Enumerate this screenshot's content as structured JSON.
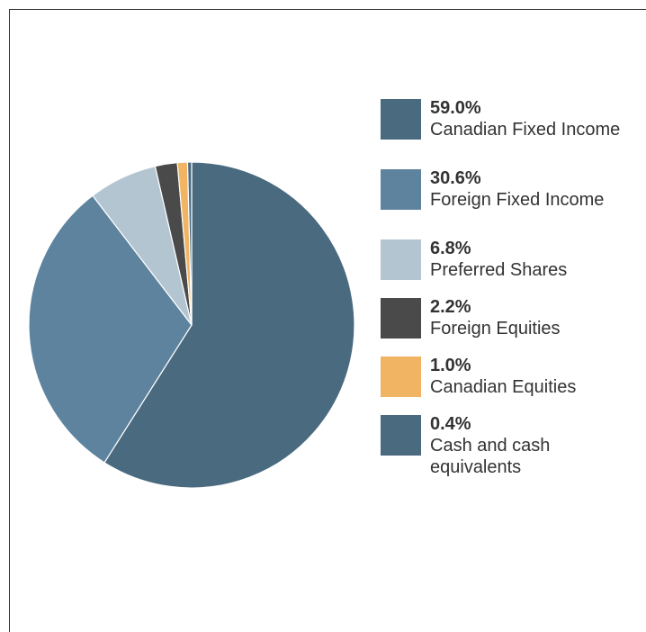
{
  "chart_data": {
    "type": "pie",
    "title": "",
    "start": "top",
    "direction": "clockwise",
    "slices": [
      {
        "label": "Canadian Fixed Income",
        "pct_label": "59.0%",
        "value": 59.0,
        "color": "#4a6a80"
      },
      {
        "label": "Foreign Fixed Income",
        "pct_label": "30.6%",
        "value": 30.6,
        "color": "#5e839e"
      },
      {
        "label": "Preferred Shares",
        "pct_label": "6.8%",
        "value": 6.8,
        "color": "#b3c5d1"
      },
      {
        "label": "Foreign Equities",
        "pct_label": "2.2%",
        "value": 2.2,
        "color": "#4a4a4a"
      },
      {
        "label": "Canadian Equities",
        "pct_label": "1.0%",
        "value": 1.0,
        "color": "#f0b462"
      },
      {
        "label": "Cash and cash equivalents",
        "pct_label": "0.4%",
        "value": 0.4,
        "color": "#4a6a80"
      }
    ],
    "legend_position": "right"
  }
}
